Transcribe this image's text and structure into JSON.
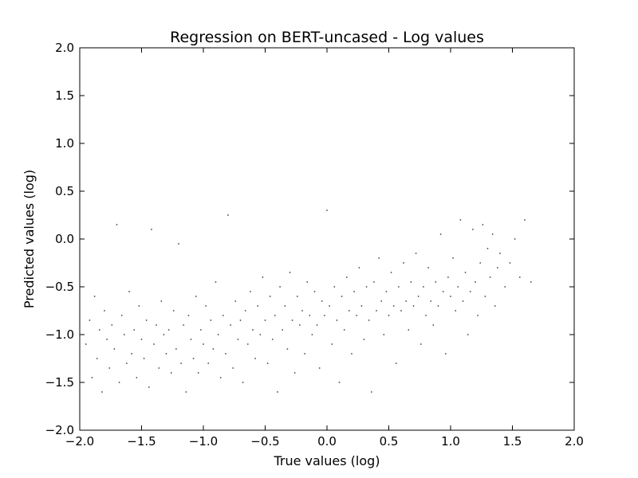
{
  "chart_data": {
    "type": "scatter",
    "title": "Regression on BERT-uncased - Log values",
    "xlabel": "True values (log)",
    "ylabel": "Predicted values (log)",
    "xlim": [
      -2.0,
      2.0
    ],
    "ylim": [
      -2.0,
      2.0
    ],
    "xticks": [
      "−2.0",
      "−1.5",
      "−1.0",
      "−0.5",
      "0.0",
      "0.5",
      "1.0",
      "1.5",
      "2.0"
    ],
    "yticks": [
      "−2.0",
      "−1.5",
      "−1.0",
      "−0.5",
      "0.0",
      "0.5",
      "1.0",
      "1.5",
      "2.0"
    ],
    "grid": false,
    "marker_color": "#000000",
    "series": [
      {
        "points": [
          [
            -1.95,
            -1.1
          ],
          [
            -1.92,
            -0.85
          ],
          [
            -1.9,
            -1.45
          ],
          [
            -1.88,
            -0.6
          ],
          [
            -1.86,
            -1.25
          ],
          [
            -1.84,
            -0.95
          ],
          [
            -1.82,
            -1.6
          ],
          [
            -1.8,
            -0.75
          ],
          [
            -1.78,
            -1.05
          ],
          [
            -1.76,
            -1.35
          ],
          [
            -1.74,
            -0.9
          ],
          [
            -1.72,
            -1.15
          ],
          [
            -1.7,
            0.15
          ],
          [
            -1.68,
            -1.5
          ],
          [
            -1.66,
            -0.8
          ],
          [
            -1.64,
            -1.0
          ],
          [
            -1.62,
            -1.3
          ],
          [
            -1.6,
            -0.55
          ],
          [
            -1.58,
            -1.2
          ],
          [
            -1.56,
            -0.95
          ],
          [
            -1.54,
            -1.45
          ],
          [
            -1.52,
            -0.7
          ],
          [
            -1.5,
            -1.05
          ],
          [
            -1.48,
            -1.25
          ],
          [
            -1.46,
            -0.85
          ],
          [
            -1.44,
            -1.55
          ],
          [
            -1.42,
            0.1
          ],
          [
            -1.4,
            -1.1
          ],
          [
            -1.38,
            -0.9
          ],
          [
            -1.36,
            -1.35
          ],
          [
            -1.34,
            -0.65
          ],
          [
            -1.32,
            -1.0
          ],
          [
            -1.3,
            -1.2
          ],
          [
            -1.28,
            -0.95
          ],
          [
            -1.26,
            -1.4
          ],
          [
            -1.24,
            -0.75
          ],
          [
            -1.22,
            -1.15
          ],
          [
            -1.2,
            -0.05
          ],
          [
            -1.18,
            -1.3
          ],
          [
            -1.16,
            -0.9
          ],
          [
            -1.14,
            -1.6
          ],
          [
            -1.12,
            -0.8
          ],
          [
            -1.1,
            -1.05
          ],
          [
            -1.08,
            -1.25
          ],
          [
            -1.06,
            -0.6
          ],
          [
            -1.04,
            -1.4
          ],
          [
            -1.02,
            -0.95
          ],
          [
            -1.0,
            -1.1
          ],
          [
            -0.98,
            -0.7
          ],
          [
            -0.96,
            -1.3
          ],
          [
            -0.94,
            -0.85
          ],
          [
            -0.92,
            -1.15
          ],
          [
            -0.9,
            -0.45
          ],
          [
            -0.88,
            -1.0
          ],
          [
            -0.86,
            -1.45
          ],
          [
            -0.84,
            -0.8
          ],
          [
            -0.82,
            -1.2
          ],
          [
            -0.8,
            0.25
          ],
          [
            -0.78,
            -0.9
          ],
          [
            -0.76,
            -1.35
          ],
          [
            -0.74,
            -0.65
          ],
          [
            -0.72,
            -1.05
          ],
          [
            -0.7,
            -0.85
          ],
          [
            -0.68,
            -1.5
          ],
          [
            -0.66,
            -0.75
          ],
          [
            -0.64,
            -1.1
          ],
          [
            -0.62,
            -0.55
          ],
          [
            -0.6,
            -0.95
          ],
          [
            -0.58,
            -1.25
          ],
          [
            -0.56,
            -0.7
          ],
          [
            -0.54,
            -1.0
          ],
          [
            -0.52,
            -0.4
          ],
          [
            -0.5,
            -0.85
          ],
          [
            -0.48,
            -1.3
          ],
          [
            -0.46,
            -0.6
          ],
          [
            -0.44,
            -1.05
          ],
          [
            -0.42,
            -0.8
          ],
          [
            -0.4,
            -1.6
          ],
          [
            -0.38,
            -0.5
          ],
          [
            -0.36,
            -0.95
          ],
          [
            -0.34,
            -0.7
          ],
          [
            -0.32,
            -1.15
          ],
          [
            -0.3,
            -0.35
          ],
          [
            -0.28,
            -0.85
          ],
          [
            -0.26,
            -1.4
          ],
          [
            -0.24,
            -0.6
          ],
          [
            -0.22,
            -0.9
          ],
          [
            -0.2,
            -0.75
          ],
          [
            -0.18,
            -1.2
          ],
          [
            -0.16,
            -0.45
          ],
          [
            -0.14,
            -0.8
          ],
          [
            -0.12,
            -1.0
          ],
          [
            -0.1,
            -0.55
          ],
          [
            -0.08,
            -0.9
          ],
          [
            -0.06,
            -1.35
          ],
          [
            -0.04,
            -0.65
          ],
          [
            -0.02,
            -0.8
          ],
          [
            0.0,
            0.3
          ],
          [
            0.02,
            -0.7
          ],
          [
            0.04,
            -1.1
          ],
          [
            0.06,
            -0.5
          ],
          [
            0.08,
            -0.85
          ],
          [
            0.1,
            -1.5
          ],
          [
            0.12,
            -0.6
          ],
          [
            0.14,
            -0.95
          ],
          [
            0.16,
            -0.4
          ],
          [
            0.18,
            -0.75
          ],
          [
            0.2,
            -1.2
          ],
          [
            0.22,
            -0.55
          ],
          [
            0.24,
            -0.8
          ],
          [
            0.26,
            -0.3
          ],
          [
            0.28,
            -0.7
          ],
          [
            0.3,
            -1.05
          ],
          [
            0.32,
            -0.5
          ],
          [
            0.34,
            -0.85
          ],
          [
            0.36,
            -1.6
          ],
          [
            0.38,
            -0.45
          ],
          [
            0.4,
            -0.75
          ],
          [
            0.42,
            -0.2
          ],
          [
            0.44,
            -0.65
          ],
          [
            0.46,
            -1.0
          ],
          [
            0.48,
            -0.55
          ],
          [
            0.5,
            -0.8
          ],
          [
            0.52,
            -0.35
          ],
          [
            0.54,
            -0.7
          ],
          [
            0.56,
            -1.3
          ],
          [
            0.58,
            -0.5
          ],
          [
            0.6,
            -0.75
          ],
          [
            0.62,
            -0.25
          ],
          [
            0.64,
            -0.65
          ],
          [
            0.66,
            -0.95
          ],
          [
            0.68,
            -0.45
          ],
          [
            0.7,
            -0.7
          ],
          [
            0.72,
            -0.15
          ],
          [
            0.74,
            -0.6
          ],
          [
            0.76,
            -1.1
          ],
          [
            0.78,
            -0.5
          ],
          [
            0.8,
            -0.8
          ],
          [
            0.82,
            -0.3
          ],
          [
            0.84,
            -0.65
          ],
          [
            0.86,
            -0.9
          ],
          [
            0.88,
            -0.45
          ],
          [
            0.9,
            -0.7
          ],
          [
            0.92,
            0.05
          ],
          [
            0.94,
            -0.55
          ],
          [
            0.96,
            -1.2
          ],
          [
            0.98,
            -0.4
          ],
          [
            1.0,
            -0.6
          ],
          [
            1.02,
            -0.2
          ],
          [
            1.04,
            -0.75
          ],
          [
            1.06,
            -0.5
          ],
          [
            1.08,
            0.2
          ],
          [
            1.1,
            -0.65
          ],
          [
            1.12,
            -0.35
          ],
          [
            1.14,
            -1.0
          ],
          [
            1.16,
            -0.55
          ],
          [
            1.18,
            0.1
          ],
          [
            1.2,
            -0.45
          ],
          [
            1.22,
            -0.8
          ],
          [
            1.24,
            -0.25
          ],
          [
            1.26,
            0.15
          ],
          [
            1.28,
            -0.6
          ],
          [
            1.3,
            -0.1
          ],
          [
            1.32,
            -0.4
          ],
          [
            1.34,
            0.05
          ],
          [
            1.36,
            -0.7
          ],
          [
            1.38,
            -0.3
          ],
          [
            1.4,
            -0.15
          ],
          [
            1.44,
            -0.5
          ],
          [
            1.48,
            -0.25
          ],
          [
            1.52,
            0.0
          ],
          [
            1.56,
            -0.4
          ],
          [
            1.6,
            0.2
          ],
          [
            1.65,
            -0.45
          ]
        ]
      }
    ]
  }
}
